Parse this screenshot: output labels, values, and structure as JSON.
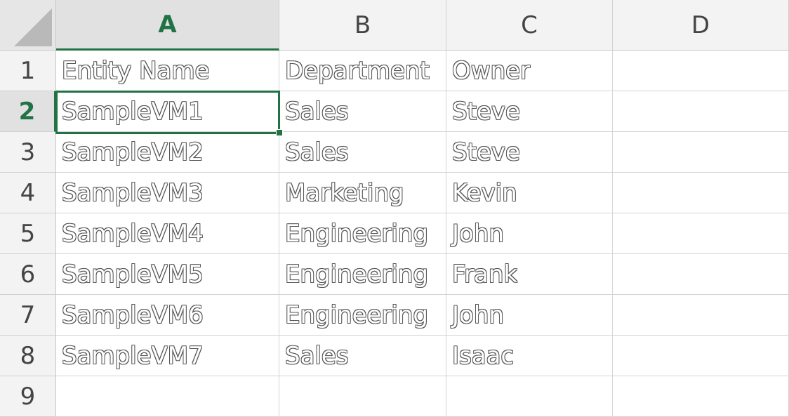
{
  "columns": [
    "A",
    "B",
    "C",
    "D"
  ],
  "rows": [
    "1",
    "2",
    "3",
    "4",
    "5",
    "6",
    "7",
    "8",
    "9"
  ],
  "active_cell": {
    "column": "A",
    "row": "2"
  },
  "cells": [
    [
      "Entity Name",
      "Department",
      "Owner",
      ""
    ],
    [
      "SampleVM1",
      "Sales",
      "Steve",
      ""
    ],
    [
      "SampleVM2",
      "Sales",
      "Steve",
      ""
    ],
    [
      "SampleVM3",
      "Marketing",
      "Kevin",
      ""
    ],
    [
      "SampleVM4",
      "Engineering",
      "John",
      ""
    ],
    [
      "SampleVM5",
      "Engineering",
      "Frank",
      ""
    ],
    [
      "SampleVM6",
      "Engineering",
      "John",
      ""
    ],
    [
      "SampleVM7",
      "Sales",
      "Isaac",
      ""
    ],
    [
      "",
      "",
      "",
      ""
    ]
  ],
  "colors": {
    "accent": "#217346",
    "header_bg": "#f3f3f3",
    "active_header_bg": "#e1e1e1",
    "gridline": "#d4d4d4"
  }
}
